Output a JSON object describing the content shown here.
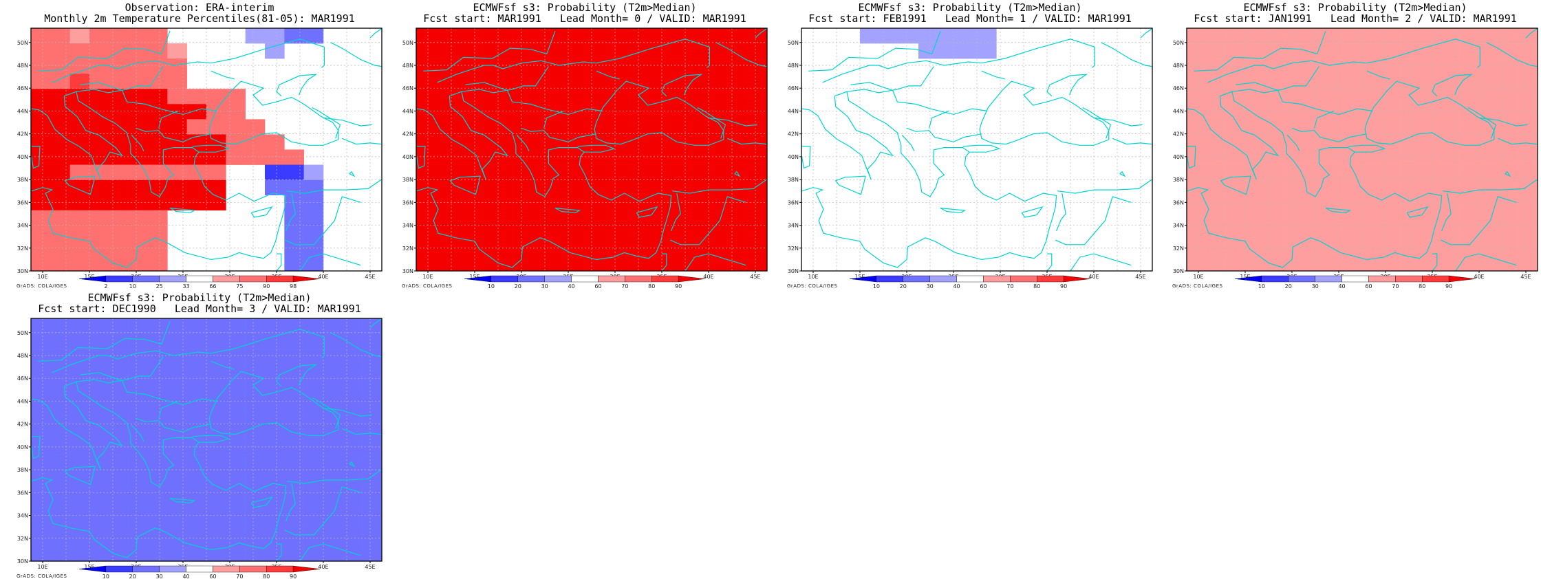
{
  "colors": {
    "coast": "#00d2d2",
    "grid": "#b8b8b8",
    "palette": [
      "#0000f5",
      "#3b3bff",
      "#7070ff",
      "#a3a3ff",
      "#ffffff",
      "#ff9e9e",
      "#ff7070",
      "#ff3b3b",
      "#f50000"
    ]
  },
  "chart_data": [
    {
      "type": "heatmap",
      "title": "Observation: ERA-interim",
      "subtitle": "Monthly 2m Temperature Percentiles(81-05): MAR1991",
      "x_ticks": [
        "10E",
        "15E",
        "20E",
        "25E",
        "30E",
        "35E",
        "40E",
        "45E"
      ],
      "y_ticks": [
        "30N",
        "32N",
        "34N",
        "36N",
        "38N",
        "40N",
        "42N",
        "44N",
        "46N",
        "48N",
        "50N"
      ],
      "xlim": [
        8.75,
        46.25
      ],
      "ylim": [
        30,
        51.25
      ],
      "legend": {
        "labels": [
          "2",
          "10",
          "25",
          "33",
          "66",
          "75",
          "90",
          "98"
        ]
      },
      "credit": "GrADS: COLA/IGES",
      "grid": [
        "665666644443322444",
        "666666654444344444",
        "666666664444444444",
        "667666664444444444",
        "888888866664444444",
        "888888888664444444",
        "888888886666444444",
        "888888888866644444",
        "888888888866664444",
        "886666666644113444",
        "888888888844222444",
        "888888888844422444",
        "666666644444422444",
        "666666644444422444",
        "666666644444422444",
        "666666644444422444"
      ]
    },
    {
      "type": "heatmap",
      "title": "ECMWFsf s3: Probability (T2m>Median)",
      "subtitle": "Fcst start: MAR1991   Lead Month= 0 / VALID: MAR1991",
      "x_ticks": [
        "10E",
        "15E",
        "20E",
        "25E",
        "30E",
        "35E",
        "40E",
        "45E"
      ],
      "y_ticks": [
        "30N",
        "32N",
        "34N",
        "36N",
        "38N",
        "40N",
        "42N",
        "44N",
        "46N",
        "48N",
        "50N"
      ],
      "xlim": [
        8.75,
        46.25
      ],
      "ylim": [
        30,
        51.25
      ],
      "legend": {
        "labels": [
          "10",
          "20",
          "30",
          "40",
          "60",
          "70",
          "80",
          "90"
        ]
      },
      "credit": "GrADS: COLA/IGES",
      "grid": [
        "888888888888888888",
        "888888888888888888",
        "888888888888888888",
        "888888888888888888",
        "888888888888888888",
        "888888888888888888",
        "888888888888888888",
        "888888888888888888",
        "888888888888888888",
        "888888888888888888",
        "888888888888888888",
        "888888888888888888",
        "888888888888888888",
        "888888888888888888",
        "888888888888888888",
        "888888888888888888"
      ]
    },
    {
      "type": "heatmap",
      "title": "ECMWFsf s3: Probability (T2m>Median)",
      "subtitle": "Fcst start: FEB1991   Lead Month= 1 / VALID: MAR1991",
      "x_ticks": [
        "10E",
        "15E",
        "20E",
        "25E",
        "30E",
        "35E",
        "40E",
        "45E"
      ],
      "y_ticks": [
        "30N",
        "32N",
        "34N",
        "36N",
        "38N",
        "40N",
        "42N",
        "44N",
        "46N",
        "48N",
        "50N"
      ],
      "xlim": [
        8.75,
        46.25
      ],
      "ylim": [
        30,
        51.25
      ],
      "legend": {
        "labels": [
          "10",
          "20",
          "30",
          "40",
          "60",
          "70",
          "80",
          "90"
        ]
      },
      "credit": "GrADS: COLA/IGES",
      "grid": [
        "444333333344444444",
        "444444333344444444",
        "444444444444444444",
        "444444444444444444",
        "444444444444444444",
        "444444444444444444",
        "444444444444444444",
        "444444444444444444",
        "444444444444444444",
        "444444444444444444",
        "444444444444444444",
        "444444444444444444",
        "444444444444444444",
        "444444444444444444",
        "444444444444444444",
        "444444444444444444"
      ]
    },
    {
      "type": "heatmap",
      "title": "ECMWFsf s3: Probability (T2m>Median)",
      "subtitle": "Fcst start: JAN1991   Lead Month= 2 / VALID: MAR1991",
      "x_ticks": [
        "10E",
        "15E",
        "20E",
        "25E",
        "30E",
        "35E",
        "40E",
        "45E"
      ],
      "y_ticks": [
        "30N",
        "32N",
        "34N",
        "36N",
        "38N",
        "40N",
        "42N",
        "44N",
        "46N",
        "48N",
        "50N"
      ],
      "xlim": [
        8.75,
        46.25
      ],
      "ylim": [
        30,
        51.25
      ],
      "legend": {
        "labels": [
          "10",
          "20",
          "30",
          "40",
          "60",
          "70",
          "80",
          "90"
        ]
      },
      "credit": "GrADS: COLA/IGES",
      "grid": [
        "555555555555555555",
        "555555555555555555",
        "555555555555555555",
        "555555555555555555",
        "555555555555555555",
        "555555555555555555",
        "555555555555555555",
        "555555555555555555",
        "555555555555555555",
        "555555555555555555",
        "555555555555555555",
        "555555555555555555",
        "555555555555555555",
        "555555555555555555",
        "555555555555555555",
        "555555555555555555"
      ]
    },
    {
      "type": "heatmap",
      "title": "ECMWFsf s3: Probability (T2m>Median)",
      "subtitle": "Fcst start: DEC1990   Lead Month= 3 / VALID: MAR1991",
      "x_ticks": [
        "10E",
        "15E",
        "20E",
        "25E",
        "30E",
        "35E",
        "40E",
        "45E"
      ],
      "y_ticks": [
        "30N",
        "32N",
        "34N",
        "36N",
        "38N",
        "40N",
        "42N",
        "44N",
        "46N",
        "48N",
        "50N"
      ],
      "xlim": [
        8.75,
        46.25
      ],
      "ylim": [
        30,
        51.25
      ],
      "legend": {
        "labels": [
          "10",
          "20",
          "30",
          "40",
          "60",
          "70",
          "80",
          "90"
        ]
      },
      "credit": "GrADS: COLA/IGES",
      "grid": [
        "222222222222222222",
        "222222222222222222",
        "222222222222222222",
        "222222222222222222",
        "222222222222222222",
        "222222222222222222",
        "222222222222222222",
        "222222222222222222",
        "222222222222222222",
        "222222222222222222",
        "222222222222222222",
        "222222222222222222",
        "222222222222222222",
        "222222222222222222",
        "222222222222222222",
        "222222222222222222"
      ]
    }
  ]
}
